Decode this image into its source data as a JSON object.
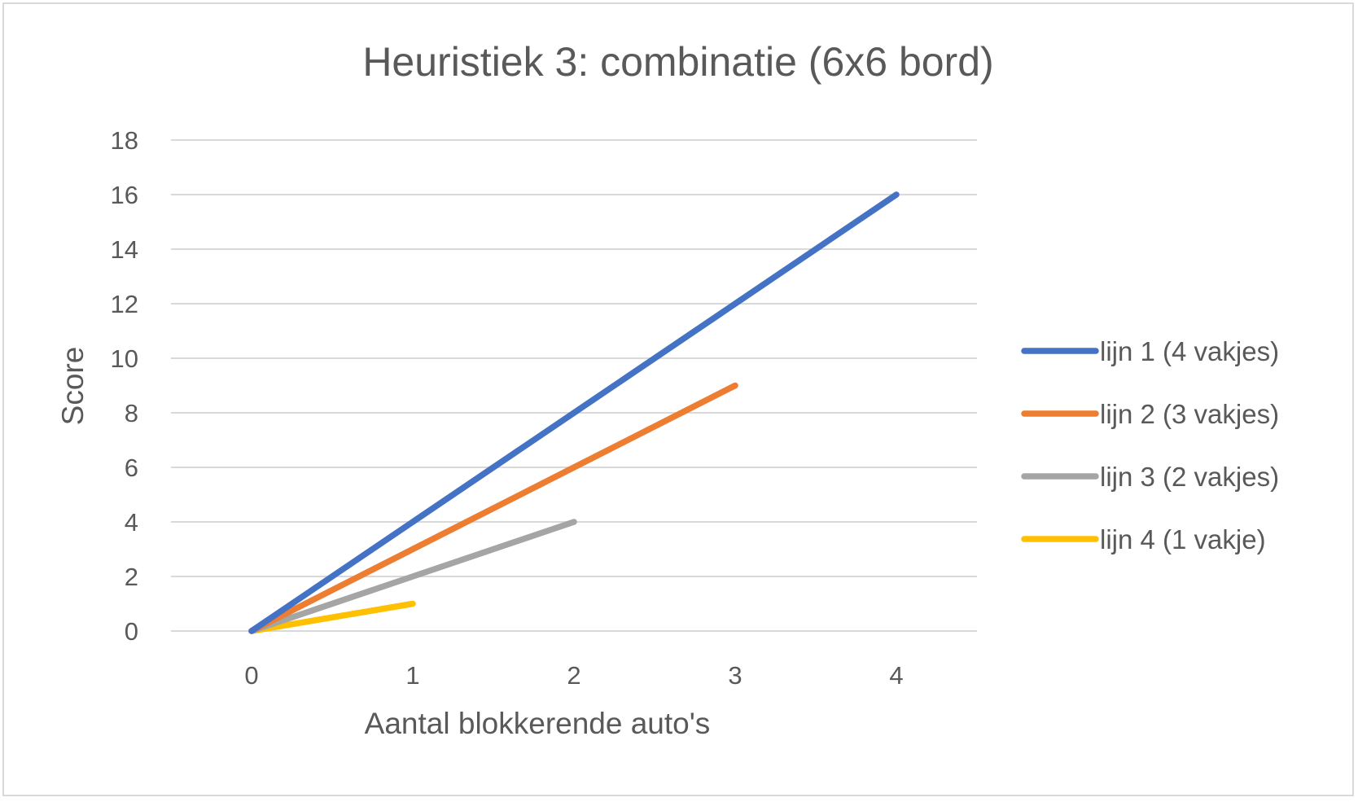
{
  "chart_data": {
    "type": "line",
    "title": "Heuristiek 3: combinatie (6x6 bord)",
    "xlabel": "Aantal blokkerende auto's",
    "ylabel": "Score",
    "x_ticks": [
      "0",
      "1",
      "2",
      "3",
      "4"
    ],
    "y_ticks": [
      "0",
      "2",
      "4",
      "6",
      "8",
      "10",
      "12",
      "14",
      "16",
      "18"
    ],
    "xlim": [
      0,
      4
    ],
    "ylim": [
      0,
      18
    ],
    "grid": "horizontal",
    "legend_position": "right",
    "series": [
      {
        "name": "lijn 1 (4 vakjes)",
        "color": "#4472c4",
        "x": [
          0,
          1,
          2,
          3,
          4
        ],
        "y": [
          0,
          4,
          8,
          12,
          16
        ]
      },
      {
        "name": "lijn 2 (3 vakjes)",
        "color": "#ed7d31",
        "x": [
          0,
          1,
          2,
          3
        ],
        "y": [
          0,
          3,
          6,
          9
        ]
      },
      {
        "name": "lijn 3 (2 vakjes)",
        "color": "#a5a5a5",
        "x": [
          0,
          1,
          2
        ],
        "y": [
          0,
          2,
          4
        ]
      },
      {
        "name": "lijn 4 (1 vakje)",
        "color": "#ffc000",
        "x": [
          0,
          1
        ],
        "y": [
          0,
          1
        ]
      }
    ]
  }
}
